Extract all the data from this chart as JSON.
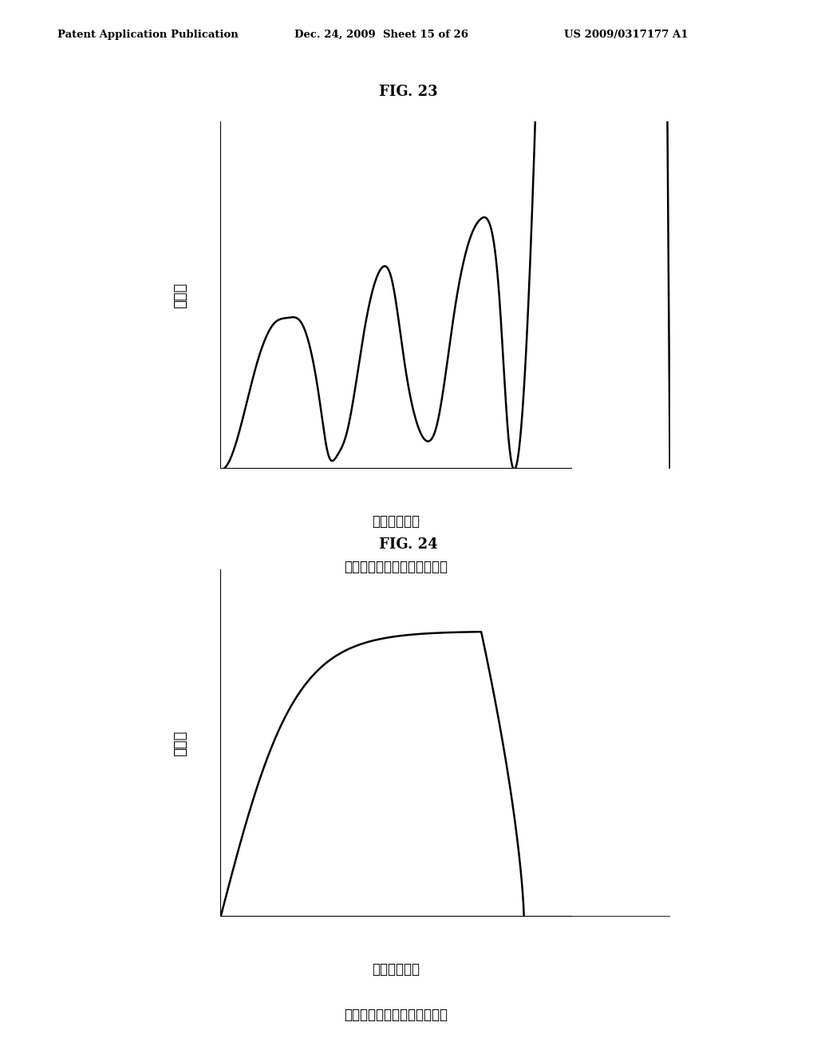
{
  "fig_title1": "FIG. 23",
  "fig_title2": "FIG. 24",
  "header_left": "Patent Application Publication",
  "header_mid": "Dec. 24, 2009  Sheet 15 of 26",
  "header_right": "US 2009/0317177 A1",
  "ylabel1": "圧入力",
  "xlabel1": "凹部成形長さ",
  "xlabel1_sub": "凹部を断続的に加工した場合",
  "ylabel2": "圧入力",
  "xlabel2": "凹部成形長さ",
  "xlabel2_sub": "凹部を連続的に加工した場合",
  "bg_color": "#ffffff",
  "line_color": "#000000",
  "text_color": "#000000"
}
